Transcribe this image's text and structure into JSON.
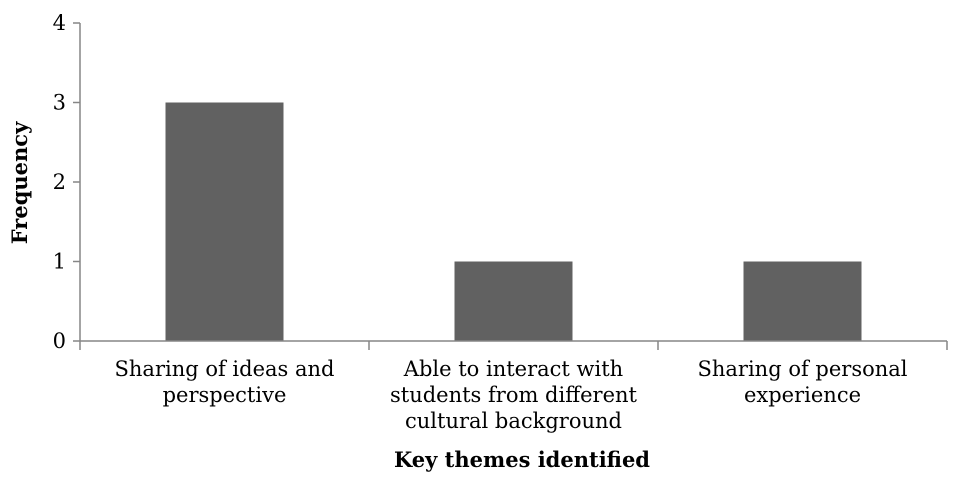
{
  "chart_data": {
    "type": "bar",
    "title": "",
    "xlabel": "Key themes identified",
    "ylabel": "Frequency",
    "categories": [
      [
        "Sharing of ideas and",
        "perspective"
      ],
      [
        "Able to interact with",
        "students from different",
        "cultural background"
      ],
      [
        "Sharing of personal",
        "experience"
      ]
    ],
    "values": [
      3,
      1,
      1
    ],
    "ylim": [
      0,
      4
    ],
    "yticks": [
      0,
      1,
      2,
      3,
      4
    ],
    "grid": false,
    "legend": "none",
    "bar_color": "#616161",
    "axis_color": "#868686"
  }
}
